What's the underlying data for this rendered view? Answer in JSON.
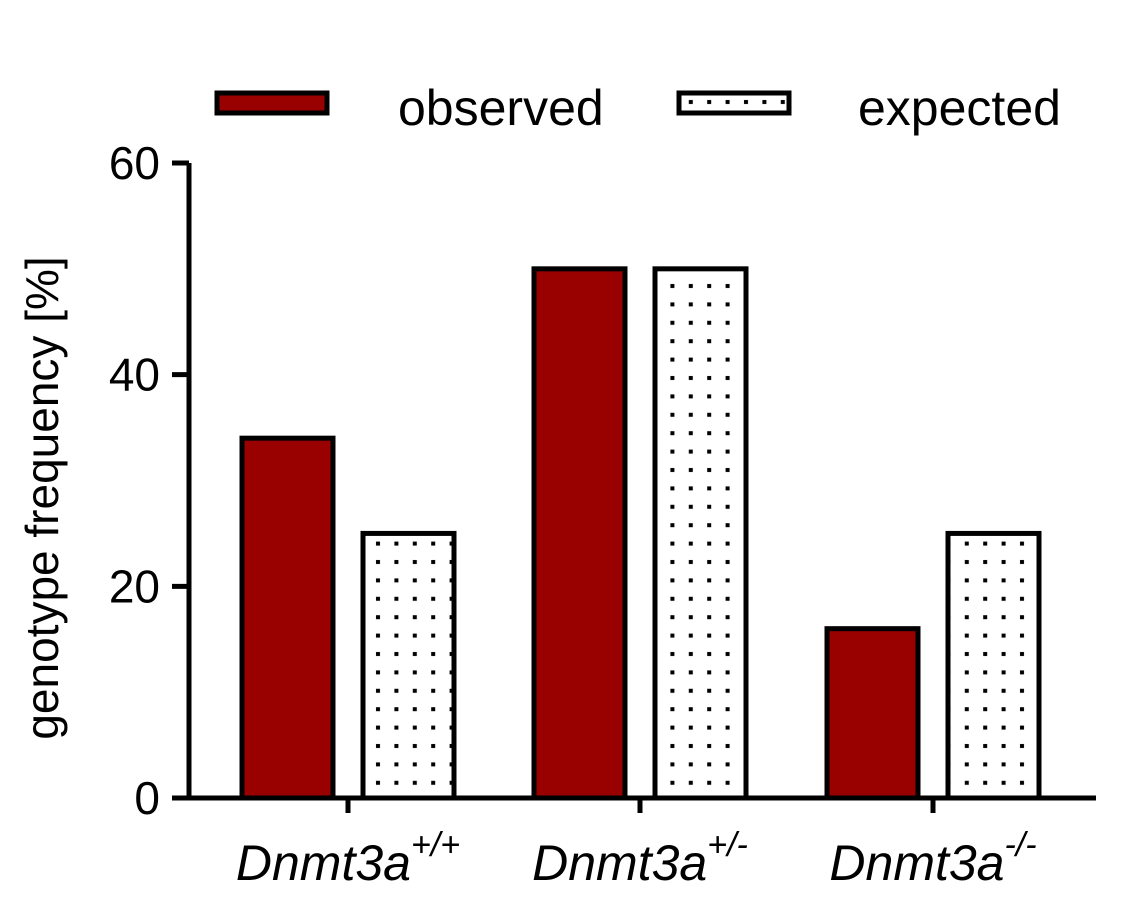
{
  "chart_data": {
    "type": "bar",
    "categories": [
      {
        "base": "Dnmt3a",
        "sup": "+/+"
      },
      {
        "base": "Dnmt3a",
        "sup": "+/-"
      },
      {
        "base": "Dnmt3a",
        "sup": "-/-"
      }
    ],
    "series": [
      {
        "name": "observed",
        "values": [
          34,
          50,
          16
        ],
        "fill": "#990000",
        "pattern": "solid"
      },
      {
        "name": "expected",
        "values": [
          25,
          50,
          25
        ],
        "fill": "#ffffff",
        "pattern": "dots"
      }
    ],
    "title": "",
    "xlabel": "",
    "ylabel": "genotype frequency [%]",
    "ylim": [
      0,
      60
    ],
    "yticks": [
      0,
      20,
      40,
      60
    ],
    "grid": false,
    "legend": "top"
  }
}
